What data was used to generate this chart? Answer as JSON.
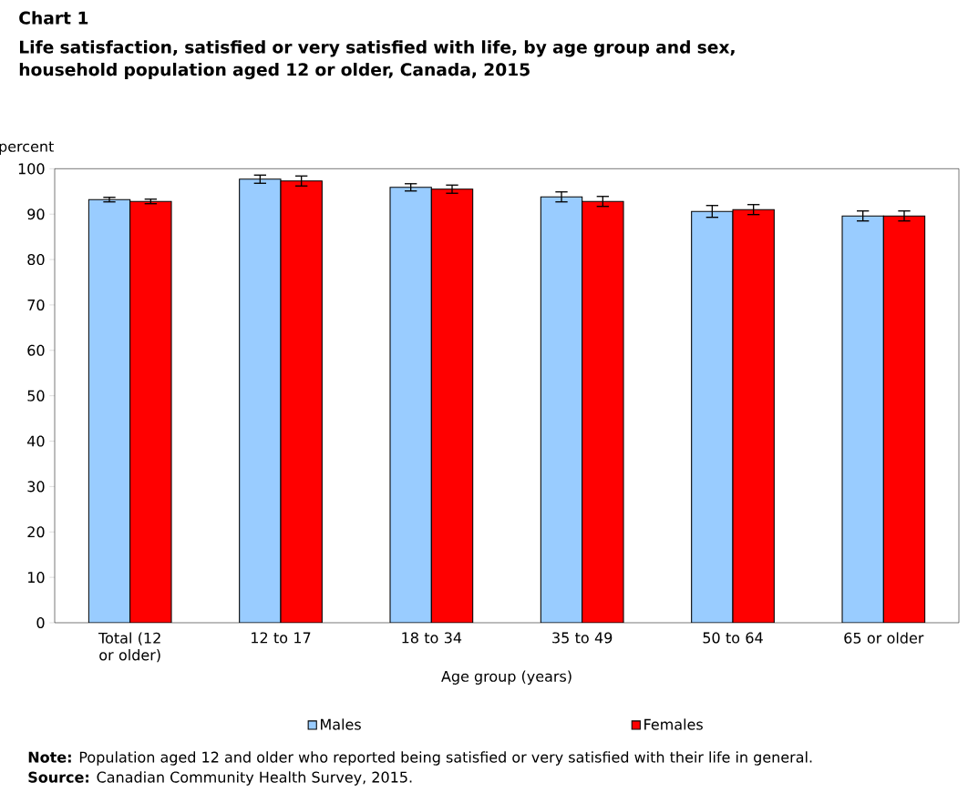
{
  "chart_data": {
    "type": "bar",
    "title": "Chart 1",
    "subtitle": "Life satisfaction, satisfied or very satisfied with life, by age group and sex, household population aged 12 or older, Canada, 2015",
    "xlabel": "Age group (years)",
    "ylabel": "percent",
    "categories": [
      "Total (12 or older)",
      "12 to 17",
      "18 to 34",
      "35 to 49",
      "50 to 64",
      "65 or older"
    ],
    "series": [
      {
        "name": "Males",
        "color": "#99ccff",
        "values": [
          93.2,
          97.7,
          95.9,
          93.8,
          90.6,
          89.6
        ],
        "errors": [
          0.5,
          0.9,
          0.8,
          1.1,
          1.3,
          1.1
        ]
      },
      {
        "name": "Females",
        "color": "#ff0000",
        "values": [
          92.8,
          97.3,
          95.5,
          92.8,
          91.0,
          89.6
        ],
        "errors": [
          0.5,
          1.1,
          0.9,
          1.1,
          1.1,
          1.1
        ]
      }
    ],
    "ylim": [
      0,
      100
    ],
    "yticks": [
      0,
      10,
      20,
      30,
      40,
      50,
      60,
      70,
      80,
      90,
      100
    ],
    "grid": false,
    "legend": "bottom",
    "annotations": [
      "**Note:** Population aged 12 and older who reported being satisfied or very satisfied with their life in general.",
      "**Source:** Canadian Community Health Survey, 2015."
    ]
  }
}
